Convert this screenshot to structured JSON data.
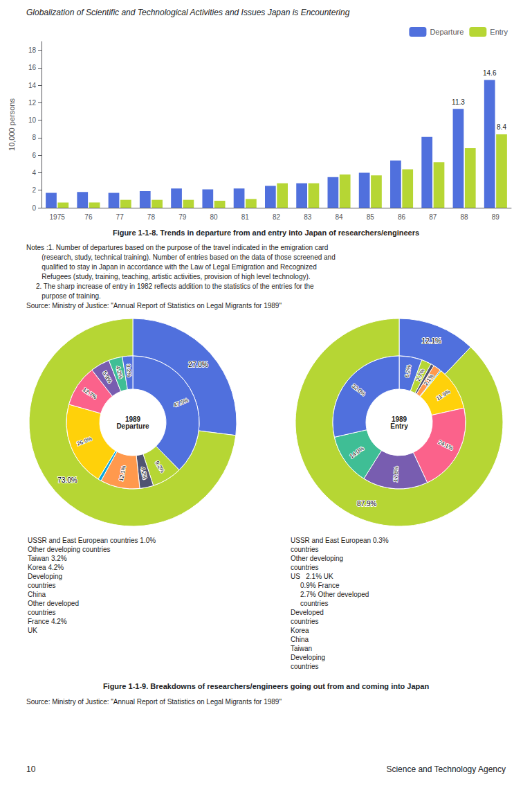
{
  "title": "Globalization of Scientific and Technological Activities and Issues Japan is Encountering",
  "annotations": [
    "Figure 1-1-9. Breakdowns of researchers/engineers going out from and coming into Japan",
    "Source: Ministry of Justice: \"Annual Report of Statistics on Legal Migrants for 1989\"",
    "10",
    "Science and Technology Agency"
  ],
  "chart_data": [
    {
      "type": "bar",
      "title": "Figure 1-1-8. Trends in departure from and entry into Japan of researchers/engineers",
      "ylabel": "10,000 persons",
      "categories": [
        "1975",
        "76",
        "77",
        "78",
        "79",
        "80",
        "81",
        "82",
        "83",
        "84",
        "85",
        "86",
        "87",
        "88",
        "89"
      ],
      "series": [
        {
          "name": "Departure",
          "values": [
            1.7,
            1.8,
            1.7,
            1.9,
            2.2,
            2.1,
            2.2,
            2.5,
            2.8,
            3.5,
            4.0,
            5.4,
            8.1,
            11.3,
            14.6
          ],
          "value_labels": [
            null,
            null,
            null,
            null,
            null,
            null,
            null,
            null,
            null,
            null,
            null,
            null,
            null,
            "11.3",
            "14.6"
          ]
        },
        {
          "name": "Entry",
          "values": [
            0.6,
            0.6,
            0.9,
            0.9,
            0.9,
            0.8,
            1.0,
            2.8,
            2.8,
            3.8,
            3.7,
            4.4,
            5.2,
            6.8,
            8.4
          ],
          "value_labels": [
            null,
            null,
            null,
            null,
            null,
            null,
            null,
            null,
            null,
            null,
            null,
            null,
            null,
            null,
            "8.4"
          ]
        }
      ],
      "ylim": [
        0,
        19
      ],
      "yticks": [
        0,
        2,
        4,
        6,
        8,
        10,
        12,
        14,
        16,
        18
      ],
      "grid": false,
      "legend": "upper right",
      "annotations": [
        "Notes :1. Number of departures based on the purpose of the travel indicated in the emigration card",
        "        (research, study, technical training). Number of entries based on the data of those screened and",
        "        qualified to stay in Japan in accordance with the Law of Legal Emigration and Recognized",
        "        Refugees (study, training, teaching, artistic activities, provision of high level technology).",
        "     2. The sharp increase of entry in 1982 reflects addition to the statistics of the entries for the",
        "        purpose of training.",
        "Source: Ministry of Justice: \"Annual Report of Statistics on Legal Migrants for 1989\""
      ]
    },
    {
      "type": "pie",
      "title": "1989\nDeparture",
      "series": [
        {
          "values": [
            27.0,
            73.0
          ],
          "value_labels": [
            "27.0%",
            "73.0%"
          ]
        },
        {
          "values": [
            47.5,
            9.2,
            4.2,
            12.1,
            1.0,
            26.0,
            12.7,
            5.9,
            4.2,
            3.2
          ],
          "value_labels": [
            "47.5%",
            "9.2%",
            "4.2%",
            "12.1%",
            null,
            "26.0%",
            "12.7%",
            "5.9%",
            "4.2%",
            "3.2%"
          ]
        }
      ],
      "annotations": [
        "USSR and East European countries 1.0%",
        "Other developing countries",
        "Taiwan 3.2%",
        "Korea 4.2%",
        "Developing",
        "countries",
        "China",
        "Other developed",
        "countries",
        "France 4.2%",
        "UK"
      ]
    },
    {
      "type": "pie",
      "title": "1989\nEntry",
      "series": [
        {
          "values": [
            12.1,
            87.9
          ],
          "value_labels": [
            "12.1%",
            "87.9%"
          ]
        },
        {
          "values": [
            6.2,
            2.7,
            0.9,
            2.1,
            0.3,
            11.9,
            24.1,
            17.8,
            14.0,
            32.0
          ],
          "value_labels": [
            "6.2%",
            "2.7%",
            null,
            "2.1%",
            null,
            "11.9%",
            "24.1%",
            "17.8%",
            "14.0%",
            "32.0%"
          ]
        }
      ],
      "annotations": [
        "USSR and East European 0.3%",
        "countries",
        "Other developing",
        "countries",
        "US   2.1% UK",
        "     0.9% France",
        "     2.7% Other developed",
        "     countries",
        "Developed",
        "countries",
        "Korea",
        "China",
        "Taiwan",
        "Developing",
        "countries"
      ]
    }
  ]
}
